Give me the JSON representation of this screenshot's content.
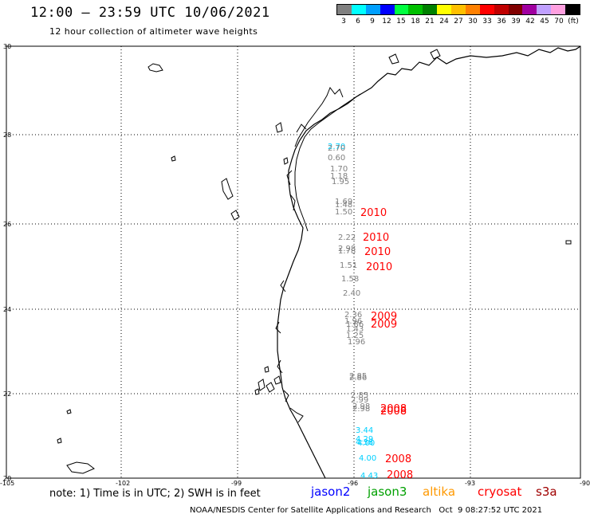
{
  "header": {
    "title": "12:00 – 23:59 UTC 10/06/2021",
    "subtitle": "12 hour collection of altimeter wave heights"
  },
  "color_scale": {
    "colors": [
      "#808080",
      "#00ffff",
      "#00a0ff",
      "#0000ff",
      "#00ff40",
      "#00c000",
      "#008000",
      "#ffff00",
      "#ffc000",
      "#ff8000",
      "#ff0000",
      "#c00000",
      "#800000",
      "#a000a0",
      "#c0a0ff",
      "#ffa0e0",
      "#000000"
    ],
    "labels": [
      "3",
      "6",
      "9",
      "12",
      "15",
      "18",
      "21",
      "24",
      "27",
      "30",
      "33",
      "36",
      "39",
      "42",
      "45",
      "70",
      "(ft)"
    ]
  },
  "map": {
    "lat_labels": [
      "30",
      "28",
      "26",
      "24",
      "22",
      "20"
    ],
    "lon_labels": [
      "-105",
      "-102",
      "-99",
      "-96",
      "-93",
      "-90"
    ]
  },
  "tracks": [
    {
      "year": "2010",
      "year_color": "#ff0000",
      "points": [
        {
          "value": "2.70",
          "color": "#00d0ff"
        },
        {
          "value": "2.70",
          "color": "#808080"
        },
        {
          "value": "0.60",
          "color": "#808080"
        },
        {
          "value": "1.70",
          "color": "#808080"
        },
        {
          "value": "1.18",
          "color": "#808080"
        },
        {
          "value": "1.95",
          "color": "#808080"
        },
        {
          "value": "1.69",
          "color": "#808080"
        },
        {
          "value": "1.48",
          "color": "#808080"
        },
        {
          "value": "1.50",
          "color": "#808080"
        },
        {
          "value": "2.22",
          "color": "#808080"
        },
        {
          "value": "2.98",
          "color": "#808080"
        },
        {
          "value": "1.78",
          "color": "#808080"
        },
        {
          "value": "1.51",
          "color": "#808080"
        },
        {
          "value": "1.58",
          "color": "#808080"
        },
        {
          "value": "2.40",
          "color": "#808080"
        }
      ]
    },
    {
      "year": "2009",
      "year_color": "#ff0000",
      "points": [
        {
          "value": "2.36",
          "color": "#808080"
        },
        {
          "value": "1.96",
          "color": "#808080"
        },
        {
          "value": "1.86",
          "color": "#808080"
        },
        {
          "value": "1.43",
          "color": "#808080"
        },
        {
          "value": "1.25",
          "color": "#808080"
        },
        {
          "value": "1.96",
          "color": "#808080"
        }
      ]
    },
    {
      "year": "2008",
      "year_color": "#ff0000",
      "points": [
        {
          "value": "2.85",
          "color": "#808080"
        },
        {
          "value": "2.86",
          "color": "#808080"
        },
        {
          "value": "2.85",
          "color": "#808080"
        },
        {
          "value": "2.99",
          "color": "#808080"
        },
        {
          "value": "2.98",
          "color": "#808080"
        },
        {
          "value": "2.98",
          "color": "#808080"
        },
        {
          "value": "3.44",
          "color": "#00d0ff"
        },
        {
          "value": "4.29",
          "color": "#00d0ff"
        },
        {
          "value": "4.38",
          "color": "#00d0ff"
        },
        {
          "value": "4.00",
          "color": "#00d0ff"
        },
        {
          "value": "4.00",
          "color": "#00d0ff"
        },
        {
          "value": "4.43",
          "color": "#00d0ff"
        }
      ]
    }
  ],
  "track_year_labels": [
    "2010",
    "2010",
    "2010",
    "2010",
    "2009",
    "2009",
    "2008",
    "2008",
    "2008",
    "2008"
  ],
  "footer": {
    "note": "note: 1) Time is in UTC; 2) SWH is in feet",
    "missions": [
      {
        "name": "jason2",
        "color": "#0000ff"
      },
      {
        "name": "jason3",
        "color": "#00a000"
      },
      {
        "name": "altika",
        "color": "#ff9900"
      },
      {
        "name": "cryosat",
        "color": "#ff0000"
      },
      {
        "name": "s3a",
        "color": "#a00000"
      }
    ],
    "credit": "NOAA/NESDIS Center for Satellite Applications and Research   Oct  9 08:27:52 UTC 2021"
  }
}
